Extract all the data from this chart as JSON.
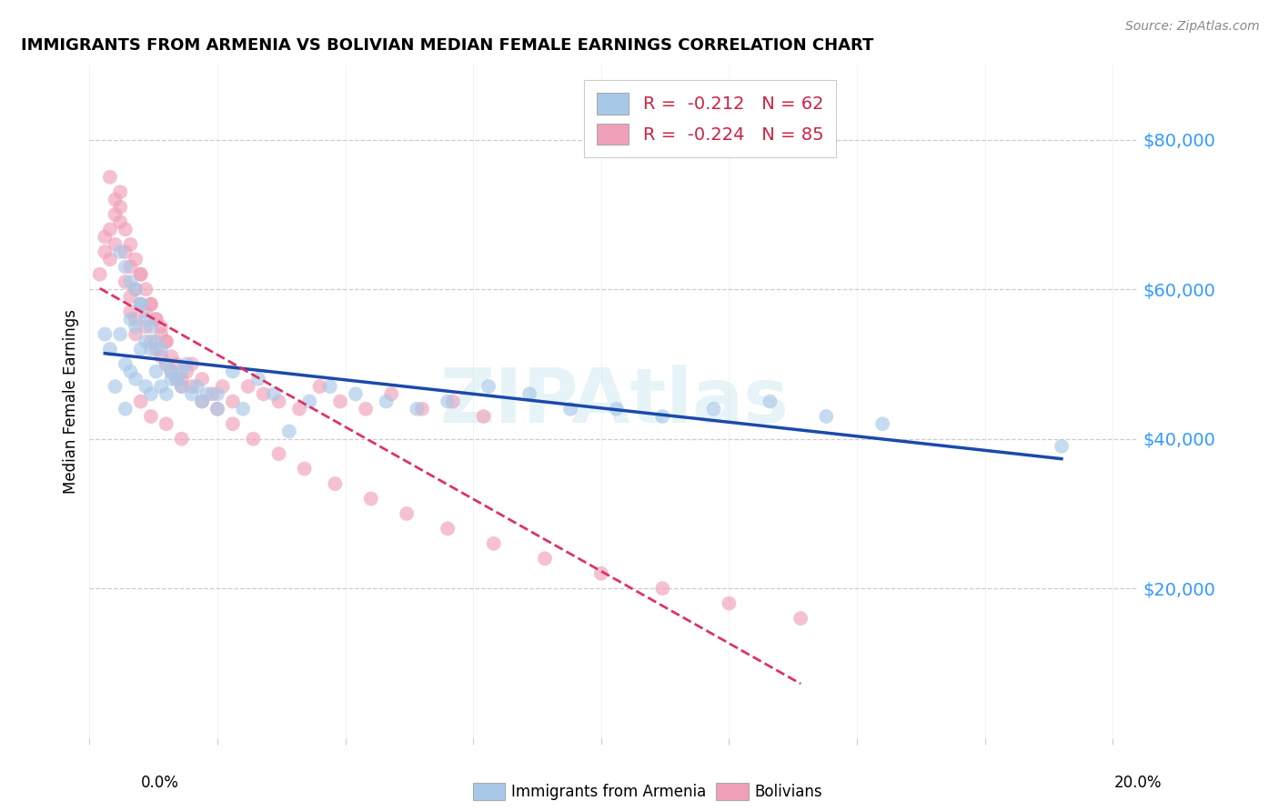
{
  "title": "IMMIGRANTS FROM ARMENIA VS BOLIVIAN MEDIAN FEMALE EARNINGS CORRELATION CHART",
  "source": "Source: ZipAtlas.com",
  "ylabel": "Median Female Earnings",
  "yticks": [
    20000,
    40000,
    60000,
    80000
  ],
  "ytick_labels": [
    "$20,000",
    "$40,000",
    "$60,000",
    "$80,000"
  ],
  "xlim": [
    0.0,
    0.205
  ],
  "ylim": [
    0,
    90000
  ],
  "watermark": "ZIPAtlas",
  "legend_armenia_R": "-0.212",
  "legend_armenia_N": "62",
  "legend_bolivia_R": "-0.224",
  "legend_bolivia_N": "85",
  "armenia_color": "#a8c8e8",
  "bolivia_color": "#f0a0b8",
  "armenia_line_color": "#1a4aaa",
  "bolivia_line_color": "#dd3366",
  "background_color": "#ffffff",
  "scatter_alpha": 0.65,
  "scatter_size": 130,
  "armenia_x": [
    0.003,
    0.004,
    0.005,
    0.006,
    0.007,
    0.007,
    0.008,
    0.008,
    0.009,
    0.009,
    0.01,
    0.01,
    0.011,
    0.011,
    0.012,
    0.012,
    0.013,
    0.014,
    0.015,
    0.016,
    0.017,
    0.018,
    0.019,
    0.021,
    0.023,
    0.025,
    0.028,
    0.03,
    0.033,
    0.036,
    0.039,
    0.043,
    0.047,
    0.052,
    0.058,
    0.064,
    0.07,
    0.078,
    0.086,
    0.094,
    0.103,
    0.112,
    0.122,
    0.133,
    0.144,
    0.155,
    0.006,
    0.007,
    0.008,
    0.009,
    0.01,
    0.011,
    0.012,
    0.013,
    0.014,
    0.015,
    0.016,
    0.018,
    0.02,
    0.022,
    0.025,
    0.19
  ],
  "armenia_y": [
    54000,
    52000,
    47000,
    54000,
    50000,
    44000,
    56000,
    49000,
    55000,
    48000,
    58000,
    52000,
    53000,
    47000,
    52000,
    46000,
    49000,
    47000,
    46000,
    49000,
    48000,
    49000,
    50000,
    47000,
    46000,
    46000,
    49000,
    44000,
    48000,
    46000,
    41000,
    45000,
    47000,
    46000,
    45000,
    44000,
    45000,
    47000,
    46000,
    44000,
    44000,
    43000,
    44000,
    45000,
    43000,
    42000,
    65000,
    63000,
    61000,
    60000,
    58000,
    56000,
    55000,
    53000,
    52000,
    50000,
    48000,
    47000,
    46000,
    45000,
    44000,
    39000
  ],
  "bolivia_x": [
    0.002,
    0.003,
    0.003,
    0.004,
    0.004,
    0.005,
    0.005,
    0.006,
    0.006,
    0.007,
    0.007,
    0.008,
    0.008,
    0.008,
    0.009,
    0.009,
    0.009,
    0.01,
    0.01,
    0.011,
    0.011,
    0.012,
    0.012,
    0.013,
    0.013,
    0.014,
    0.014,
    0.015,
    0.015,
    0.016,
    0.017,
    0.018,
    0.019,
    0.02,
    0.022,
    0.024,
    0.026,
    0.028,
    0.031,
    0.034,
    0.037,
    0.041,
    0.045,
    0.049,
    0.054,
    0.059,
    0.065,
    0.071,
    0.077,
    0.004,
    0.005,
    0.006,
    0.007,
    0.008,
    0.009,
    0.01,
    0.011,
    0.012,
    0.013,
    0.014,
    0.015,
    0.016,
    0.017,
    0.018,
    0.02,
    0.022,
    0.025,
    0.028,
    0.032,
    0.037,
    0.042,
    0.048,
    0.055,
    0.062,
    0.07,
    0.079,
    0.089,
    0.1,
    0.112,
    0.125,
    0.139,
    0.01,
    0.012,
    0.015,
    0.018
  ],
  "bolivia_y": [
    62000,
    65000,
    67000,
    68000,
    64000,
    70000,
    66000,
    73000,
    69000,
    65000,
    61000,
    57000,
    63000,
    59000,
    56000,
    60000,
    54000,
    58000,
    62000,
    57000,
    55000,
    53000,
    58000,
    52000,
    56000,
    51000,
    54000,
    50000,
    53000,
    49000,
    48000,
    47000,
    49000,
    50000,
    48000,
    46000,
    47000,
    45000,
    47000,
    46000,
    45000,
    44000,
    47000,
    45000,
    44000,
    46000,
    44000,
    45000,
    43000,
    75000,
    72000,
    71000,
    68000,
    66000,
    64000,
    62000,
    60000,
    58000,
    56000,
    55000,
    53000,
    51000,
    50000,
    48000,
    47000,
    45000,
    44000,
    42000,
    40000,
    38000,
    36000,
    34000,
    32000,
    30000,
    28000,
    26000,
    24000,
    22000,
    20000,
    18000,
    16000,
    45000,
    43000,
    42000,
    40000
  ]
}
